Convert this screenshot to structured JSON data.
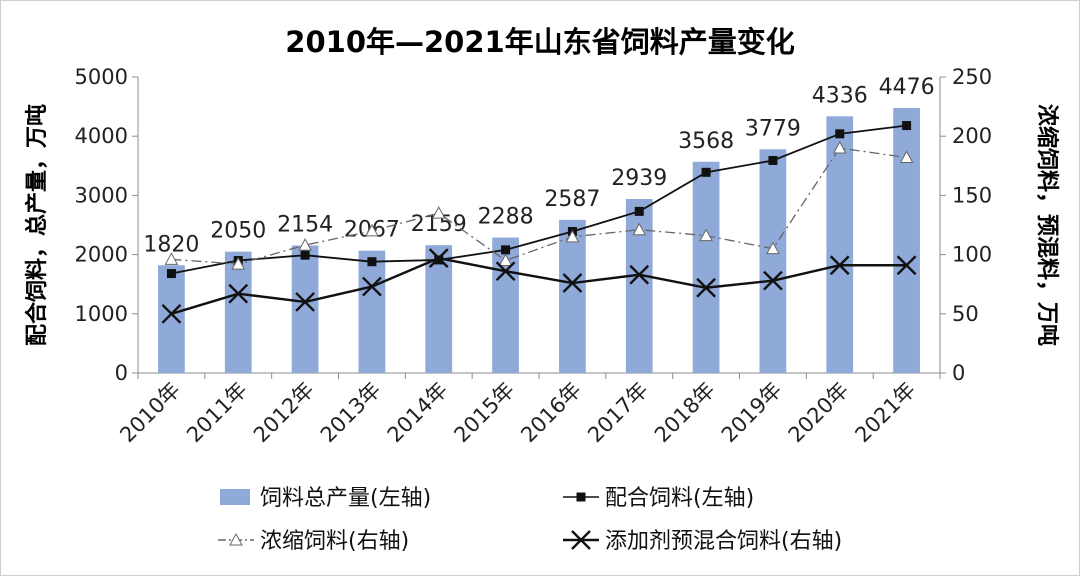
{
  "chart_data": {
    "type": "bar",
    "title": "2010年—2021年山东省饲料产量变化",
    "categories": [
      "2010年",
      "2011年",
      "2012年",
      "2013年",
      "2014年",
      "2015年",
      "2016年",
      "2017年",
      "2018年",
      "2019年",
      "2020年",
      "2021年"
    ],
    "left_axis": {
      "label": "配合饲料，总产量，万吨",
      "ylim": [
        0,
        5000
      ],
      "ticks": [
        "0",
        "1000",
        "2000",
        "3000",
        "4000",
        "5000"
      ]
    },
    "right_axis": {
      "label": "浓缩饲料，预混料，万吨",
      "ylim": [
        0,
        250
      ],
      "ticks": [
        "0",
        "50",
        "100",
        "150",
        "200",
        "250"
      ]
    },
    "grid": false,
    "legend_position": "bottom",
    "series": [
      {
        "name": "饲料总产量(左轴)",
        "type": "bar",
        "axis": "left",
        "color": "#8fa9d9",
        "values": [
          1820,
          2050,
          2154,
          2067,
          2159,
          2288,
          2587,
          2939,
          3568,
          3779,
          4336,
          4476
        ],
        "labels": [
          "1820",
          "2050",
          "2154",
          "2067",
          "2159",
          "2288",
          "2587",
          "2939",
          "3568",
          "3779",
          "4336",
          "4476"
        ]
      },
      {
        "name": "配合饲料(左轴)",
        "type": "line",
        "axis": "left",
        "marker": "square",
        "color": "#111111",
        "values": [
          1680,
          1900,
          1990,
          1880,
          1910,
          2080,
          2390,
          2730,
          3390,
          3590,
          4040,
          4180
        ]
      },
      {
        "name": "浓缩饲料(右轴)",
        "type": "line",
        "axis": "right",
        "marker": "triangle",
        "dash": "dashdot",
        "color": "#666666",
        "values": [
          96,
          92,
          108,
          120,
          135,
          95,
          115,
          121,
          116,
          105,
          190,
          182
        ]
      },
      {
        "name": "添加剂预混合饲料(右轴)",
        "type": "line",
        "axis": "right",
        "marker": "x",
        "color": "#111111",
        "values": [
          50,
          67,
          60,
          73,
          97,
          86,
          76,
          83,
          72,
          78,
          91,
          91
        ]
      }
    ]
  }
}
